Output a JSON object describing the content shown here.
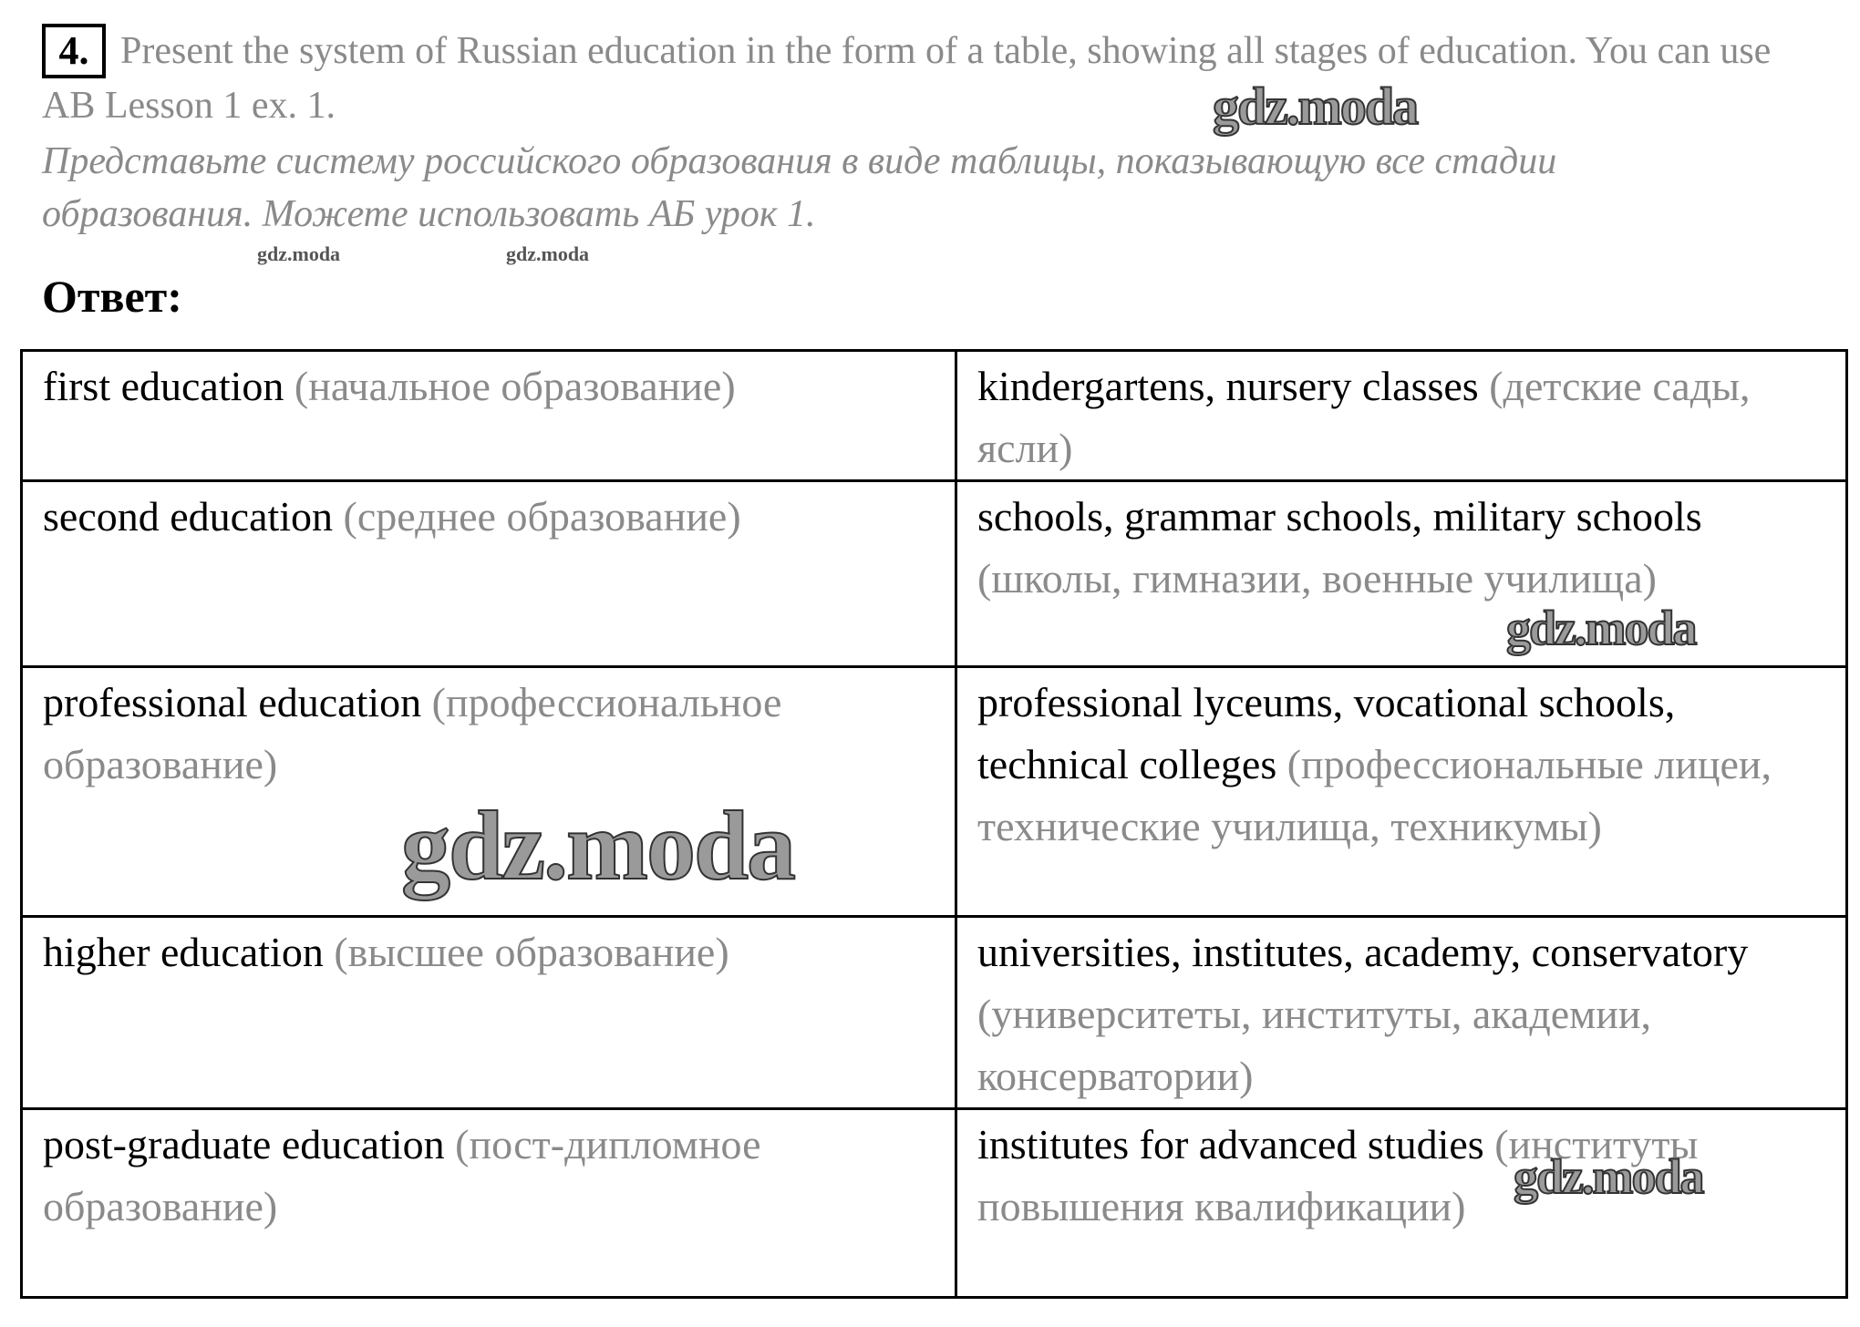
{
  "task": {
    "number": "4.",
    "text_en": "Present the system of Russian education in the form of a table, showing all stages of education. You can use AB Lesson 1 ex. 1.",
    "text_ru": "Представьте систему российского образования в виде таблицы, показывающую все стадии образования. Можете использовать АБ урок 1."
  },
  "answer_label": "Ответ:",
  "table": {
    "rows": [
      {
        "stage_en": "first education",
        "stage_ru": "(начальное образование)",
        "inst_en": "kindergartens, nursery classes",
        "inst_ru": "(детские сады, ясли)"
      },
      {
        "stage_en": "second education",
        "stage_ru": "(среднее образование)",
        "inst_en": "schools, grammar schools, military schools",
        "inst_ru": "(школы, гимназии, военные училища)"
      },
      {
        "stage_en": "professional education",
        "stage_ru": "(профессиональное образование)",
        "inst_en": "professional lyceums, vocational schools, technical colleges",
        "inst_ru": "(профессиональные лицеи, технические училища, техникумы)"
      },
      {
        "stage_en": "higher education",
        "stage_ru": "(высшее образование)",
        "inst_en": "universities, institutes, academy, conservatory",
        "inst_ru": "(университеты, институты, академии, консерватории)"
      },
      {
        "stage_en": "post-graduate education",
        "stage_ru": "(пост-дипломное образование)",
        "inst_en": "institutes for advanced studies",
        "inst_ru": "(институты повышения квалификации)"
      }
    ]
  },
  "watermark": "gdz.moda",
  "colors": {
    "english_text": "#000000",
    "russian_text": "#8a8a8a"
  }
}
